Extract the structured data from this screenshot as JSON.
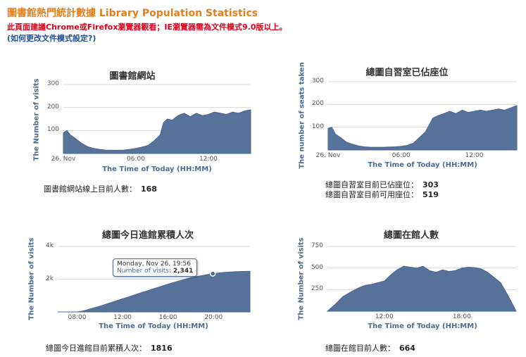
{
  "header": {
    "title": "圖書館熱門統計數據 Library Population Statistics",
    "browser_note": "此頁面建議Chrome或Firefox瀏覽器觀看；IE瀏覽器需為文件模式9.0版以上。",
    "doc_mode_link": "(如何更改文件模式設定?)"
  },
  "colors": {
    "area": "#56729a",
    "axis_label": "#4d6b93",
    "title": "#e57f1c",
    "note": "#e0001b"
  },
  "chart_data": [
    {
      "id": "website",
      "type": "area",
      "title": "圖書館網站",
      "xlabel": "The Time of Today (HH:MM)",
      "ylabel": "The Number of visits",
      "xlim": [
        0,
        15.5
      ],
      "ylim": [
        0,
        300
      ],
      "yticks": [
        "100",
        "200",
        "300"
      ],
      "yticks_values": [
        100,
        200,
        300
      ],
      "xticks": [
        "26. Nov",
        "06:00",
        "12:00"
      ],
      "xticks_values": [
        0,
        6,
        12
      ],
      "x": [
        0,
        0.3,
        0.6,
        1,
        1.5,
        2,
        2.5,
        3,
        3.5,
        4,
        4.5,
        5,
        5.5,
        6,
        6.5,
        7,
        7.5,
        8,
        8.3,
        8.6,
        9,
        9.5,
        10,
        10.5,
        11,
        11.5,
        12,
        12.5,
        13,
        13.5,
        14,
        14.5,
        15,
        15.5
      ],
      "y": [
        90,
        100,
        80,
        65,
        45,
        30,
        22,
        18,
        15,
        14,
        14,
        15,
        18,
        22,
        28,
        35,
        55,
        80,
        135,
        150,
        145,
        165,
        175,
        160,
        175,
        165,
        170,
        180,
        175,
        170,
        180,
        175,
        185,
        190
      ],
      "stats": [
        {
          "label": "圖書館網站線上目前人數：",
          "value": "168"
        }
      ]
    },
    {
      "id": "seats",
      "type": "area",
      "title": "總圖自習室已佔座位",
      "xlabel": "The Time of Today (HH:MM)",
      "ylabel": "The number of seats taken",
      "xlim": [
        0,
        15.5
      ],
      "ylim": [
        0,
        300
      ],
      "yticks": [
        "100",
        "200",
        "300"
      ],
      "yticks_values": [
        100,
        200,
        300
      ],
      "xticks": [
        "26. Nov",
        "06:00",
        "12:00"
      ],
      "xticks_values": [
        0,
        6,
        12
      ],
      "x": [
        0,
        0.3,
        0.6,
        1,
        1.5,
        2,
        2.5,
        3,
        3.5,
        4,
        4.5,
        5,
        5.5,
        6,
        6.5,
        7,
        7.5,
        8,
        8.3,
        8.6,
        9,
        9.5,
        10,
        10.5,
        11,
        11.5,
        12,
        12.5,
        13,
        13.5,
        14,
        14.5,
        15,
        15.5
      ],
      "y": [
        95,
        100,
        70,
        55,
        35,
        25,
        18,
        14,
        12,
        12,
        12,
        13,
        14,
        16,
        20,
        30,
        55,
        80,
        110,
        140,
        150,
        160,
        170,
        160,
        175,
        165,
        170,
        175,
        170,
        175,
        180,
        175,
        185,
        195
      ],
      "stats": [
        {
          "label": "總圖自習室目前已佔座位：",
          "value": "303"
        },
        {
          "label": "總圖自習室目前可用座位：",
          "value": "519"
        }
      ]
    },
    {
      "id": "entries",
      "type": "area",
      "title": "總圖今日進館累積人次",
      "xlabel": "The Time of Today (HH:MM)",
      "ylabel": "The Number of visits",
      "xlim": [
        6.3,
        23.2
      ],
      "ylim": [
        0,
        4000
      ],
      "yticks": [
        "2k",
        "4k"
      ],
      "yticks_values": [
        2000,
        4000
      ],
      "xticks": [
        "08:00",
        "12:00",
        "16:00",
        "20:00"
      ],
      "xticks_values": [
        8,
        12,
        16,
        20
      ],
      "x": [
        6.3,
        8,
        8.5,
        10,
        12,
        14,
        16,
        18,
        19.93,
        21,
        22,
        23.2
      ],
      "y": [
        0,
        0,
        50,
        350,
        800,
        1250,
        1700,
        2100,
        2341,
        2420,
        2460,
        2480
      ],
      "tooltip": {
        "date": "Monday, Nov 26, 19:56",
        "label": "Number of visits",
        "value": "2,341",
        "x": 19.93,
        "y": 2341
      },
      "stats": [
        {
          "label": "總圖今日進館目前累積人次：",
          "value": "1816"
        }
      ]
    },
    {
      "id": "occupancy",
      "type": "area",
      "title": "總圖在館人數",
      "xlabel": "The Time of Today (HH:MM)",
      "ylabel": "The Number of visits",
      "xlim": [
        7.6,
        22.2
      ],
      "ylim": [
        0,
        750
      ],
      "yticks": [
        "250",
        "500",
        "750"
      ],
      "yticks_values": [
        250,
        500,
        750
      ],
      "xticks": [
        "12:00",
        "18:00"
      ],
      "xticks_values": [
        12,
        18
      ],
      "x": [
        7.6,
        8.2,
        8.8,
        9.5,
        10,
        10.5,
        11,
        11.5,
        12,
        12.5,
        13,
        13.5,
        14,
        14.5,
        15,
        15.5,
        16,
        16.5,
        17,
        17.5,
        18,
        18.5,
        19,
        19.5,
        20,
        20.5,
        21,
        21.5,
        22,
        22.2
      ],
      "y": [
        0,
        80,
        170,
        230,
        270,
        300,
        310,
        330,
        350,
        420,
        480,
        520,
        510,
        500,
        520,
        470,
        450,
        480,
        460,
        470,
        500,
        510,
        505,
        490,
        450,
        390,
        330,
        200,
        60,
        0
      ],
      "stats": [
        {
          "label": "總圖在館目前人數：",
          "value": "664"
        }
      ]
    }
  ]
}
